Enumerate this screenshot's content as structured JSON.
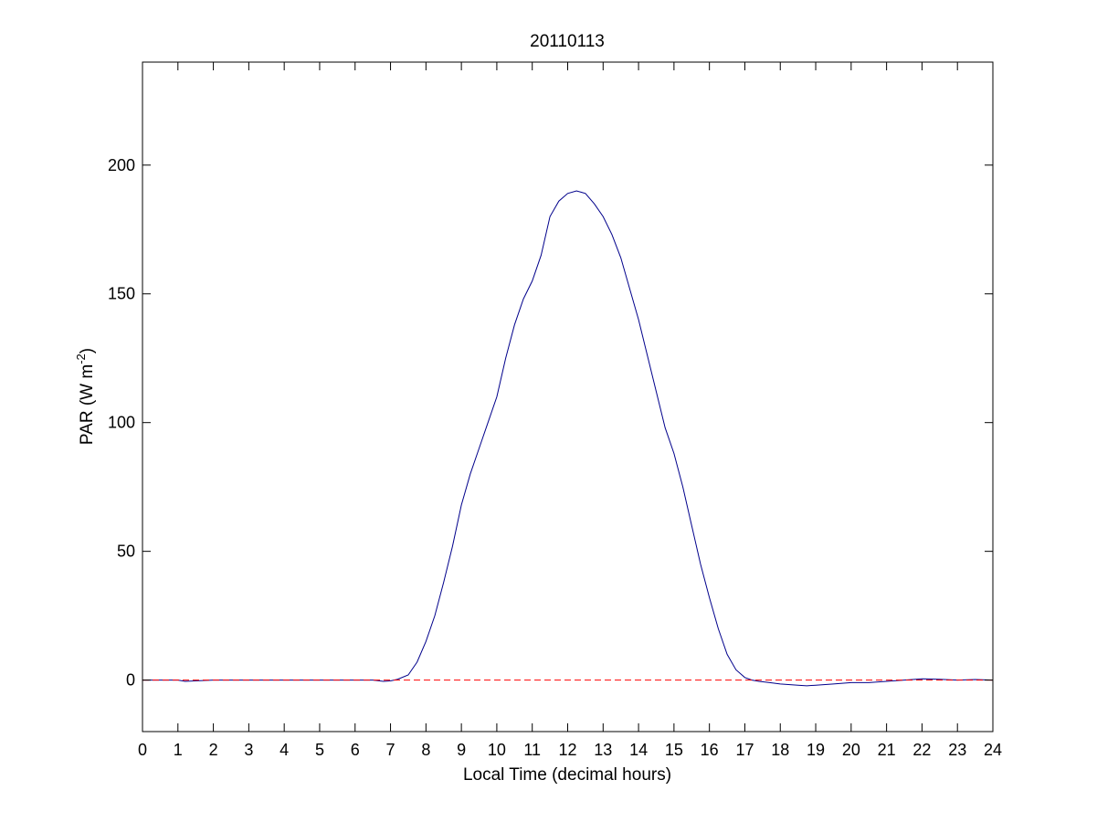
{
  "chart_data": {
    "type": "line",
    "title": "20110113",
    "xlabel": "Local Time (decimal hours)",
    "ylabel": {
      "base": "PAR (W m",
      "exponent": "-2",
      "close": ")"
    },
    "xlim": [
      0,
      24
    ],
    "ylim": [
      -20,
      240
    ],
    "xticks": [
      "0",
      "1",
      "2",
      "3",
      "4",
      "5",
      "6",
      "7",
      "8",
      "9",
      "10",
      "11",
      "12",
      "13",
      "14",
      "15",
      "16",
      "17",
      "18",
      "19",
      "20",
      "21",
      "22",
      "23",
      "24"
    ],
    "yticks": [
      "0",
      "50",
      "100",
      "150",
      "200"
    ],
    "grid": false,
    "legend": "none",
    "series": [
      {
        "color": "#00008b",
        "style": "solid",
        "x": [
          0,
          1,
          1.2,
          2,
          3,
          4,
          5,
          6,
          6.5,
          6.8,
          7,
          7.2,
          7.5,
          7.75,
          8,
          8.25,
          8.5,
          8.75,
          9,
          9.25,
          9.5,
          9.75,
          10,
          10.25,
          10.5,
          10.75,
          11,
          11.25,
          11.5,
          11.75,
          12,
          12.25,
          12.5,
          12.75,
          13,
          13.25,
          13.5,
          13.75,
          14,
          14.25,
          14.5,
          14.75,
          15,
          15.25,
          15.5,
          15.75,
          16,
          16.25,
          16.5,
          16.75,
          17,
          17.2,
          17.4,
          17.7,
          18,
          18.5,
          18.75,
          19,
          19.5,
          20,
          20.5,
          21,
          21.5,
          22,
          22.5,
          23,
          23.5,
          24
        ],
        "y": [
          0,
          0,
          -0.5,
          0,
          0,
          0,
          0,
          0,
          0,
          -0.5,
          -0.3,
          0.3,
          2,
          7,
          15,
          25,
          38,
          52,
          68,
          80,
          90,
          100,
          110,
          125,
          138,
          148,
          155,
          165,
          180,
          186,
          189,
          190,
          189,
          185,
          180,
          173,
          164,
          152,
          140,
          126,
          112,
          98,
          88,
          75,
          60,
          45,
          32,
          20,
          10,
          4,
          1,
          0,
          -0.5,
          -1,
          -1.5,
          -2,
          -2.2,
          -2,
          -1.5,
          -1,
          -1,
          -0.5,
          0,
          0.5,
          0.3,
          0,
          0.2,
          0
        ]
      },
      {
        "color": "#ff0000",
        "style": "dashed",
        "x": [
          0,
          24
        ],
        "y": [
          0,
          0
        ]
      }
    ]
  }
}
